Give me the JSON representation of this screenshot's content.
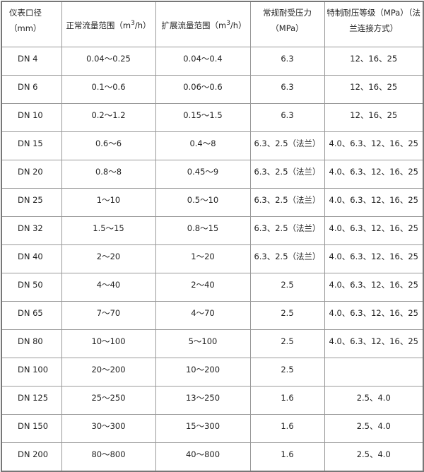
{
  "headers": {
    "diameter": "仪表口径（mm）",
    "normal_flow_pre": "正常流量范围（m",
    "normal_flow_sup": "3",
    "normal_flow_post": "/h）",
    "extended_flow_pre": "扩展流量范围（m",
    "extended_flow_sup": "3",
    "extended_flow_post": "/h）",
    "pressure": "常规耐受压力（MPa）",
    "special": "特制耐压等级（MPa）（法兰连接方式）"
  },
  "rows": [
    [
      "DN 4",
      "0.04～0.25",
      "0.04～0.4",
      "6.3",
      "12、16、25"
    ],
    [
      "DN 6",
      "0.1～0.6",
      "0.06～0.6",
      "6.3",
      "12、16、25"
    ],
    [
      "DN 10",
      "0.2～1.2",
      "0.15～1.5",
      "6.3",
      "12、16、25"
    ],
    [
      "DN 15",
      "0.6～6",
      "0.4～8",
      "6.3、2.5（法兰）",
      "4.0、6.3、12、16、25"
    ],
    [
      "DN 20",
      "0.8～8",
      "0.45～9",
      "6.3、2.5（法兰）",
      "4.0、6.3、12、16、25"
    ],
    [
      "DN 25",
      "1～10",
      "0.5～10",
      "6.3、2.5（法兰）",
      "4.0、6.3、12、16、25"
    ],
    [
      "DN 32",
      "1.5～15",
      "0.8～15",
      "6.3、2.5（法兰）",
      "4.0、6.3、12、16、25"
    ],
    [
      "DN 40",
      "2～20",
      "1～20",
      "6.3、2.5（法兰）",
      "4.0、6.3、12、16、25"
    ],
    [
      "DN 50",
      "4～40",
      "2～40",
      "2.5",
      "4.0、6.3、12、16、25"
    ],
    [
      "DN 65",
      "7～70",
      "4～70",
      "2.5",
      "4.0、6.3、12、16、25"
    ],
    [
      "DN 80",
      "10～100",
      "5～100",
      "2.5",
      "4.0、6.3、12、16、25"
    ],
    [
      "DN 100",
      "20～200",
      "10～200",
      "2.5",
      ""
    ],
    [
      "DN 125",
      "25～250",
      "13～250",
      "1.6",
      "2.5、4.0"
    ],
    [
      "DN 150",
      "30～300",
      "15～300",
      "1.6",
      "2.5、4.0"
    ],
    [
      "DN 200",
      "80～800",
      "40～800",
      "1.6",
      "2.5、4.0"
    ]
  ]
}
